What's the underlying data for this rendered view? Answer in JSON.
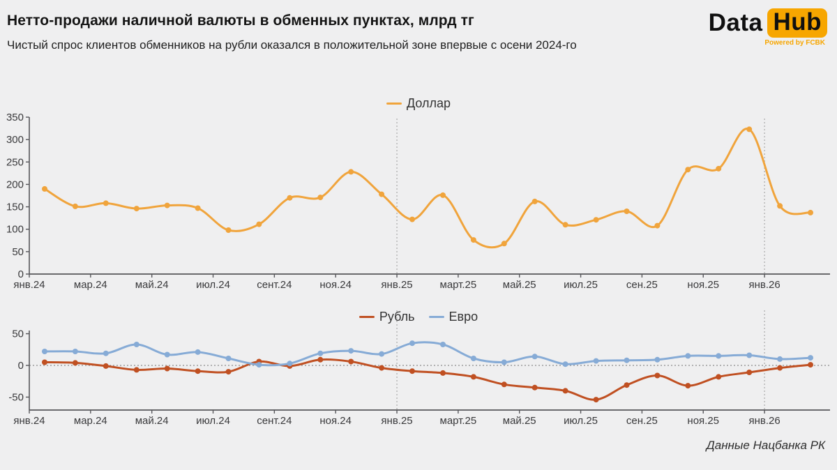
{
  "header": {
    "title": "Нетто-продажи наличной валюты в обменных пунктах, млрд тг",
    "subtitle": "Чистый спрос клиентов обменников на рубли оказался в положительной зоне впервые с осени 2024-го"
  },
  "logo": {
    "part1": "Data",
    "part2": "Hub",
    "tagline": "Powered by FCBK",
    "accent_color": "#f7a600"
  },
  "footer": {
    "source": "Данные Нацбанка РК"
  },
  "colors": {
    "background": "#efeff0",
    "axis": "#56565a",
    "tick_text": "#39393b",
    "divider": "#9a9a9a",
    "dollar": "#f0a43c",
    "ruble": "#c05022",
    "euro": "#86abd6"
  },
  "chart_data": [
    {
      "type": "line",
      "title": "",
      "categories": [
        "янв.24",
        "фев.24",
        "мар.24",
        "апр.24",
        "май.24",
        "июн.24",
        "июл.24",
        "авг.24",
        "сен.24",
        "окт.24",
        "ноя.24",
        "дек.24",
        "янв.25",
        "фев.25",
        "мар.25",
        "апр.25",
        "май.25",
        "июн.25",
        "июл.25",
        "авг.25",
        "сен.25",
        "окт.25",
        "ноя.25",
        "дек.25",
        "янв.26",
        "фев.26"
      ],
      "visible_x_ticks": [
        "янв.24",
        "мар.24",
        "май.24",
        "июл.24",
        "сент.24",
        "ноя.24",
        "янв.25",
        "март.25",
        "май.25",
        "июл.25",
        "сен.25",
        "ноя.25",
        "янв.26"
      ],
      "series": [
        {
          "name": "Доллар",
          "color": "#f0a43c",
          "values": [
            190,
            151,
            158,
            146,
            153,
            147,
            98,
            111,
            170,
            171,
            228,
            178,
            122,
            176,
            76,
            68,
            162,
            110,
            121,
            140,
            108,
            233,
            235,
            323,
            152,
            137
          ]
        }
      ],
      "ylim": [
        0,
        350
      ],
      "yticks": [
        0,
        50,
        100,
        150,
        200,
        250,
        300,
        350
      ],
      "grid": false,
      "legend_position": "top-center",
      "year_divider_category_index": [
        12,
        24
      ]
    },
    {
      "type": "line",
      "title": "",
      "categories": [
        "янв.24",
        "фев.24",
        "мар.24",
        "апр.24",
        "май.24",
        "июн.24",
        "июл.24",
        "авг.24",
        "сен.24",
        "окт.24",
        "ноя.24",
        "дек.24",
        "янв.25",
        "фев.25",
        "мар.25",
        "апр.25",
        "май.25",
        "июн.25",
        "июл.25",
        "авг.25",
        "сен.25",
        "окт.25",
        "ноя.25",
        "дек.25",
        "янв.26",
        "фев.26"
      ],
      "visible_x_ticks": [
        "янв.24",
        "мар.24",
        "май.24",
        "июл.24",
        "сент.24",
        "ноя.24",
        "янв.25",
        "март.25",
        "май.25",
        "июл.25",
        "сен.25",
        "ноя.25",
        "янв.26"
      ],
      "series": [
        {
          "name": "Рубль",
          "color": "#c05022",
          "values": [
            5,
            4,
            -1,
            -7,
            -5,
            -9,
            -10,
            6,
            -1,
            9,
            6,
            -4,
            -9,
            -12,
            -18,
            -30,
            -35,
            -40,
            -54,
            -31,
            -16,
            -32,
            -18,
            -11,
            -4,
            1
          ]
        },
        {
          "name": "Евро",
          "color": "#86abd6",
          "values": [
            22,
            22,
            19,
            33,
            17,
            21,
            11,
            1,
            3,
            19,
            23,
            18,
            35,
            33,
            11,
            5,
            14,
            2,
            7,
            8,
            9,
            15,
            15,
            16,
            10,
            12
          ]
        }
      ],
      "ylim": [
        -70,
        60
      ],
      "yticks": [
        50,
        0,
        -50
      ],
      "zero_line": "dotted",
      "grid": false,
      "legend_position": "top-center",
      "year_divider_category_index": [
        12,
        24
      ]
    }
  ]
}
